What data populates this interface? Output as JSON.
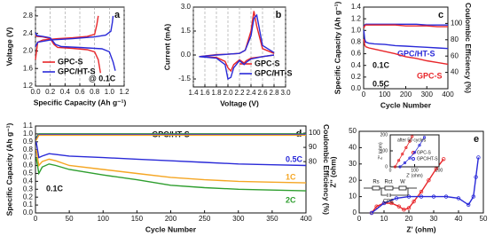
{
  "chart_data": [
    {
      "type": "line",
      "panel_label": "a",
      "xlabel": "Specific Capacity (Ah g⁻¹)",
      "ylabel": "Voltage (V)",
      "grid": true,
      "legend": true,
      "xlim": [
        0,
        1.2
      ],
      "xticks": [
        {
          "value": 0,
          "label": "0.0"
        },
        0.2,
        0.4,
        0.6,
        0.8,
        {
          "value": 1,
          "label": "1.0"
        },
        1.2
      ],
      "ylim": [
        1.2,
        3.0
      ],
      "yticks": [
        1.2,
        1.6,
        {
          "value": 2,
          "label": "2.0"
        },
        2.4,
        2.8
      ],
      "annotations": [
        {
          "text": "@ 0.1C",
          "color": "#111111"
        }
      ],
      "series": [
        {
          "name": "GPC-S",
          "color": "#e8262a",
          "x": [
            0,
            0.02,
            0.1,
            0.2,
            0.25,
            0.3,
            0.5,
            0.7,
            0.8,
            0.85,
            0.88,
            null,
            0,
            0.03,
            0.1,
            0.3,
            0.5,
            0.7,
            0.8,
            0.83,
            0.85
          ],
          "values": [
            2.35,
            2.33,
            2.32,
            2.28,
            2.15,
            2.08,
            2.06,
            2.03,
            1.98,
            1.8,
            1.5,
            null,
            1.8,
            2.2,
            2.25,
            2.28,
            2.3,
            2.33,
            2.38,
            2.6,
            2.8
          ]
        },
        {
          "name": "GPC/HT-S",
          "color": "#2a2ad8",
          "x": [
            0,
            0.02,
            0.1,
            0.2,
            0.27,
            0.35,
            0.6,
            0.9,
            1.0,
            1.05,
            1.08,
            null,
            0,
            0.03,
            0.2,
            0.5,
            0.8,
            0.95,
            1.02,
            1.04,
            1.05
          ],
          "values": [
            2.42,
            2.35,
            2.33,
            2.3,
            2.15,
            2.1,
            2.08,
            2.05,
            1.98,
            1.75,
            1.55,
            null,
            2.1,
            2.2,
            2.25,
            2.28,
            2.32,
            2.36,
            2.45,
            2.65,
            2.8
          ]
        }
      ]
    },
    {
      "type": "line",
      "panel_label": "b",
      "xlabel": "Voltage (V)",
      "ylabel": "Current (mA)",
      "grid": true,
      "legend": true,
      "xlim": [
        1.4,
        3.0
      ],
      "xticks": [
        1.4,
        1.6,
        1.8,
        {
          "value": 2,
          "label": "2.0"
        },
        2.2,
        2.4,
        2.6,
        2.8,
        {
          "value": 3,
          "label": "3.0"
        }
      ],
      "ylim": [
        -2,
        3
      ],
      "yticks": [
        -1.5,
        {
          "value": 0,
          "label": "0.0"
        },
        1.5,
        {
          "value": 3,
          "label": "3.0"
        }
      ],
      "annotations": [],
      "series": [
        {
          "name": "GPC-S",
          "color": "#e8262a",
          "x": [
            2.8,
            2.6,
            2.4,
            2.32,
            2.28,
            2.2,
            2.1,
            2.05,
            2.0,
            1.95,
            1.8,
            1.5,
            1.8,
            2.0,
            2.2,
            2.3,
            2.4,
            2.45,
            2.5,
            2.6,
            2.8
          ],
          "values": [
            0,
            -0.1,
            -0.2,
            -0.35,
            -0.5,
            -0.3,
            -0.6,
            -1.0,
            -0.8,
            -0.4,
            -0.15,
            -0.1,
            0.02,
            0.05,
            0.1,
            0.3,
            1.5,
            2.75,
            1.8,
            0.4,
            0.1
          ]
        },
        {
          "name": "GPC/HT-S",
          "color": "#2a2ad8",
          "x": [
            2.8,
            2.6,
            2.4,
            2.32,
            2.28,
            2.2,
            2.1,
            2.05,
            2.0,
            1.95,
            1.8,
            1.5,
            1.8,
            2.0,
            2.2,
            2.3,
            2.4,
            2.45,
            2.5,
            2.6,
            2.8
          ],
          "values": [
            0,
            -0.1,
            -0.25,
            -0.45,
            -0.6,
            -0.35,
            -0.8,
            -1.4,
            -1.5,
            -0.6,
            -0.2,
            -0.1,
            0,
            0.05,
            0.1,
            0.3,
            1.2,
            2.3,
            2.5,
            0.6,
            0.15
          ]
        }
      ]
    },
    {
      "type": "line",
      "panel_label": "c",
      "xlabel": "Cycle Number",
      "ylabel": "Specific Capacity (Ah g⁻¹)",
      "y2label": "Coulombic Efficiency (%)",
      "grid": false,
      "legend": false,
      "xlim": [
        0,
        400
      ],
      "xticks": [
        0,
        100,
        200,
        300,
        400
      ],
      "ylim": [
        0,
        1.4
      ],
      "yticks": [
        {
          "value": 0,
          "label": "0.0"
        },
        0.2,
        0.4,
        0.6,
        0.8,
        {
          "value": 1,
          "label": "1.0"
        },
        1.2,
        1.4
      ],
      "y2lim": [
        20,
        120
      ],
      "y2ticks": [
        40,
        60,
        80,
        100
      ],
      "annotations": [
        {
          "text": "0.1C",
          "color": "#111111"
        },
        {
          "text": "0.5C",
          "color": "#111111"
        }
      ],
      "series": [
        {
          "name": "GPC/HT-S",
          "color": "#2a2ad8",
          "x": [
            1,
            5,
            10,
            25,
            50,
            100,
            150,
            200,
            250,
            300,
            350,
            400
          ],
          "values": [
            1.0,
            0.85,
            0.8,
            0.78,
            0.77,
            0.76,
            0.74,
            0.73,
            0.72,
            0.71,
            0.7,
            0.69
          ]
        },
        {
          "name": "GPC-S",
          "color": "#e8262a",
          "x": [
            1,
            5,
            10,
            25,
            50,
            100,
            150,
            200,
            250,
            300,
            350,
            400
          ],
          "values": [
            0.85,
            0.75,
            0.72,
            0.7,
            0.68,
            0.64,
            0.6,
            0.55,
            0.52,
            0.48,
            0.45,
            0.42
          ]
        },
        {
          "color": "#2a2ad8",
          "axis": "y2",
          "x": [
            1,
            5,
            10,
            25,
            50,
            100,
            150,
            200,
            250,
            300,
            350,
            400
          ],
          "values": [
            96,
            98,
            99,
            99,
            99,
            99,
            99,
            99,
            99,
            98,
            98,
            98
          ]
        },
        {
          "color": "#e8262a",
          "axis": "y2",
          "x": [
            1,
            5,
            10,
            25,
            50,
            100,
            150,
            200,
            250,
            300,
            350,
            400
          ],
          "values": [
            94,
            97,
            98,
            98,
            98,
            98,
            98,
            97,
            97,
            97,
            96,
            96
          ]
        }
      ]
    },
    {
      "type": "line",
      "panel_label": "d",
      "title": "GPC/HT-S",
      "xlabel": "Cycle Number",
      "ylabel": "Specific Capacity (Ah g⁻¹)",
      "y2label": "Coulombic Efficiency (%)",
      "grid": false,
      "legend": false,
      "xlim": [
        0,
        400
      ],
      "xticks": [
        0,
        50,
        100,
        150,
        200,
        250,
        300,
        350,
        400
      ],
      "ylim": [
        0,
        1.1
      ],
      "yticks": [
        {
          "value": 0,
          "label": "0.0"
        },
        0.1,
        0.2,
        0.3,
        0.4,
        0.5,
        0.6,
        0.7,
        0.8,
        0.9,
        {
          "value": 1,
          "label": "1.0"
        },
        1.1
      ],
      "y2lim": [
        44,
        105
      ],
      "y2ticks": [
        80,
        90,
        100
      ],
      "annotations": [
        {
          "text": "0.1C",
          "color": "#111111"
        }
      ],
      "series": [
        {
          "name": "0.5C",
          "color": "#2a2ad8",
          "x": [
            1,
            5,
            10,
            20,
            30,
            50,
            100,
            150,
            200,
            250,
            300,
            350,
            400
          ],
          "values": [
            0.9,
            0.7,
            0.72,
            0.75,
            0.74,
            0.72,
            0.7,
            0.68,
            0.66,
            0.64,
            0.62,
            0.61,
            0.6
          ]
        },
        {
          "name": "1C",
          "color": "#f5a623",
          "x": [
            1,
            5,
            10,
            20,
            30,
            50,
            100,
            150,
            200,
            250,
            300,
            350,
            400
          ],
          "values": [
            0.8,
            0.6,
            0.65,
            0.68,
            0.66,
            0.6,
            0.55,
            0.5,
            0.45,
            0.42,
            0.4,
            0.39,
            0.38
          ]
        },
        {
          "name": "2C",
          "color": "#2e9e2e",
          "x": [
            1,
            5,
            10,
            20,
            30,
            50,
            100,
            150,
            200,
            250,
            300,
            350,
            400
          ],
          "values": [
            0.7,
            0.5,
            0.58,
            0.62,
            0.6,
            0.55,
            0.48,
            0.42,
            0.35,
            0.32,
            0.3,
            0.29,
            0.28
          ]
        },
        {
          "color": "#2e9e2e",
          "axis": "y2",
          "x": [
            1,
            5,
            10,
            20,
            30,
            50,
            100,
            150,
            200,
            250,
            300,
            350,
            400
          ],
          "values": [
            97,
            99.5,
            99.5,
            99.5,
            99.5,
            99.5,
            99.5,
            99.5,
            99.5,
            99.5,
            99.5,
            99.5,
            99.5
          ]
        },
        {
          "color": "#2a2ad8",
          "axis": "y2",
          "x": [
            1,
            5,
            10,
            20,
            30,
            50,
            100,
            150,
            200,
            250,
            300,
            350,
            400
          ],
          "values": [
            96,
            99,
            99,
            99,
            99,
            99,
            99,
            99,
            99,
            99,
            99,
            99,
            99
          ]
        },
        {
          "color": "#f5a623",
          "axis": "y2",
          "x": [
            1,
            5,
            10,
            20,
            30,
            50,
            100,
            150,
            200,
            250,
            300,
            350,
            400
          ],
          "values": [
            95,
            98.5,
            98.5,
            98.5,
            98.5,
            98.5,
            98.5,
            98.5,
            98.5,
            98.5,
            98.5,
            98.5,
            98.5
          ]
        }
      ]
    },
    {
      "type": "line",
      "panel_label": "e",
      "xlabel": "Z' (ohm)",
      "ylabel": "Z'' (ohm)",
      "grid": false,
      "legend": false,
      "markers": true,
      "xlim": [
        0,
        50
      ],
      "xticks": [
        0,
        10,
        20,
        30,
        40,
        50
      ],
      "ylim": [
        0,
        50
      ],
      "yticks": [
        0,
        10,
        20,
        30,
        40,
        50
      ],
      "circuit_labels": [
        "Rs",
        "Rct",
        "W",
        "CPE"
      ],
      "annotations": [],
      "series": [
        {
          "color": "#e8262a",
          "x": [
            5,
            7,
            10,
            13,
            16,
            18,
            20,
            22,
            25,
            28,
            31,
            34
          ],
          "values": [
            0,
            4,
            6,
            6,
            4,
            2,
            3,
            7,
            13,
            20,
            27,
            33
          ]
        },
        {
          "color": "#2a2ad8",
          "x": [
            5,
            10,
            15,
            20,
            25,
            30,
            35,
            40,
            44,
            46,
            47,
            48
          ],
          "values": [
            0,
            6,
            9,
            10,
            10,
            10,
            10,
            9,
            5,
            10,
            22,
            34
          ]
        }
      ]
    },
    {
      "type": "line",
      "xlabel": "Z' (ohm)",
      "ylabel": "Z'' (ohm)",
      "grid": false,
      "legend": true,
      "markers": true,
      "xlim": [
        0,
        200
      ],
      "xticks": [
        0,
        100,
        200
      ],
      "ylim": [
        0,
        200
      ],
      "yticks": [
        0,
        100,
        200
      ],
      "annotations": [
        {
          "text": "after 50 cycles",
          "color": "#111111"
        }
      ],
      "series": [
        {
          "name": "GPC-S",
          "color": "#e8262a",
          "x": [
            20,
            35,
            50,
            65,
            80,
            90
          ],
          "values": [
            0,
            40,
            80,
            120,
            160,
            190
          ]
        },
        {
          "name": "GPC/HT-S",
          "color": "#2a2ad8",
          "x": [
            40,
            60,
            80,
            100,
            120,
            140
          ],
          "values": [
            0,
            25,
            55,
            90,
            135,
            185
          ]
        }
      ]
    }
  ]
}
